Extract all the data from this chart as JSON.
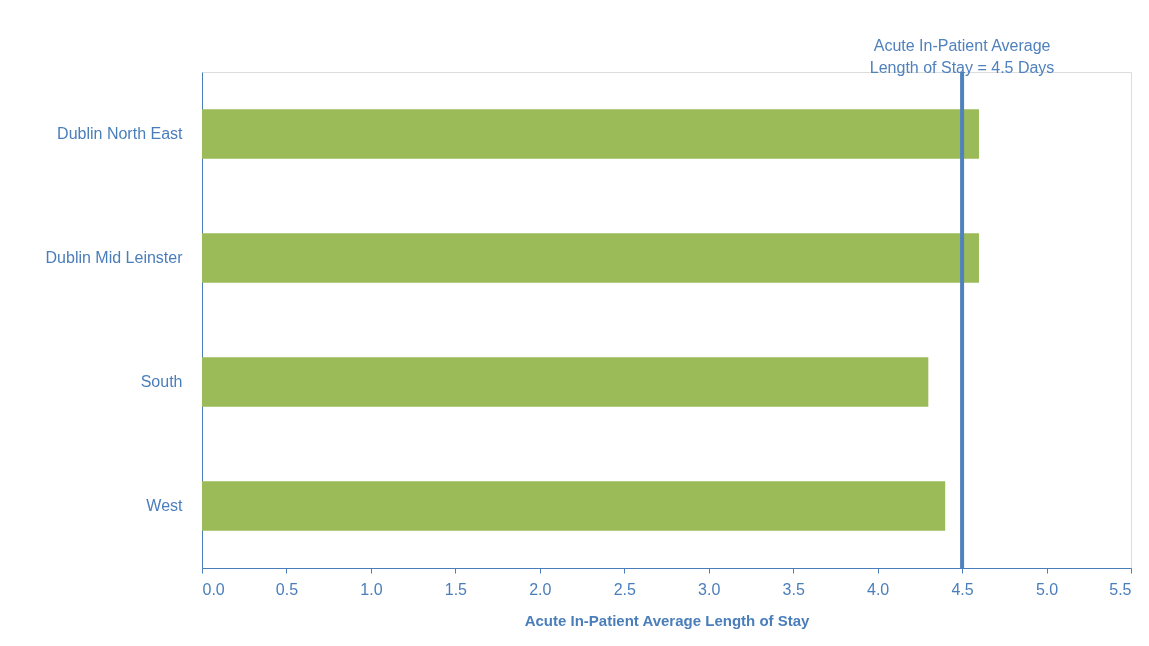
{
  "chart_data": {
    "type": "bar",
    "orientation": "horizontal",
    "xlabel": "Acute In-Patient Average Length of Stay",
    "categories": [
      "Dublin North East",
      "Dublin Mid Leinster",
      "South",
      "West"
    ],
    "values": [
      4.6,
      4.6,
      4.3,
      4.4
    ],
    "color": "#9bbb59",
    "xlim": [
      0,
      5.5
    ],
    "xticks": [
      {
        "value": 0,
        "label": "0.0"
      },
      0.5,
      {
        "value": 1,
        "label": "1.0"
      },
      1.5,
      {
        "value": 2,
        "label": "2.0"
      },
      2.5,
      {
        "value": 3,
        "label": "3.0"
      },
      3.5,
      {
        "value": 4,
        "label": "4.0"
      },
      4.5,
      {
        "value": 5,
        "label": "5.0"
      },
      5.5
    ],
    "grid": false,
    "ref_lines": [
      {
        "axis": "x",
        "value": 4.5,
        "label": "Acute In-Patient  Average\nLength of Stay = 4.5 Days",
        "color": "#4f81bd"
      }
    ]
  }
}
